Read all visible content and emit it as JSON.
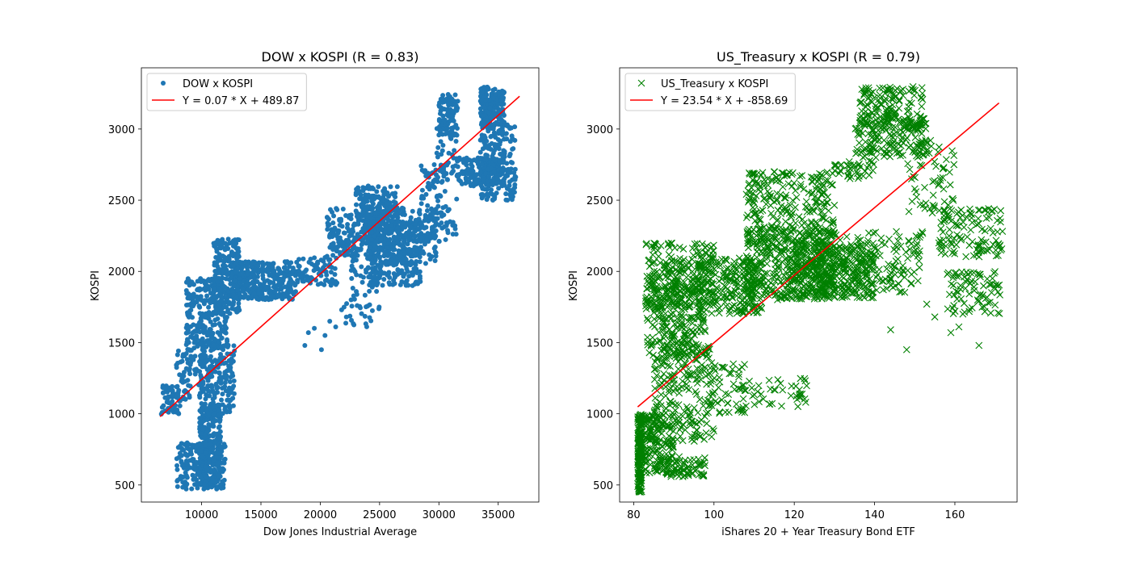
{
  "chart_data": [
    {
      "type": "scatter",
      "title": "DOW x KOSPI (R = 0.83)",
      "xlabel": "Dow Jones Industrial Average",
      "ylabel": "KOSPI",
      "xlim": [
        4922,
        38424
      ],
      "ylim": [
        380,
        3430
      ],
      "xticks": [
        10000,
        15000,
        20000,
        25000,
        30000,
        35000
      ],
      "yticks": [
        500,
        1000,
        1500,
        2000,
        2500,
        3000
      ],
      "legend_position": "upper-left",
      "series": [
        {
          "name": "DOW x KOSPI",
          "marker": "dot",
          "color": "#1f77b4",
          "clusters": [
            {
              "x": [
                6600,
                8200
              ],
              "y": [
                980,
                1200
              ],
              "n": 60
            },
            {
              "x": [
                7800,
                11000
              ],
              "y": [
                1100,
                1450
              ],
              "n": 80
            },
            {
              "x": [
                7900,
                12000
              ],
              "y": [
                470,
                800
              ],
              "n": 200
            },
            {
              "x": [
                9800,
                11600
              ],
              "y": [
                500,
                1050
              ],
              "n": 240
            },
            {
              "x": [
                9800,
                12800
              ],
              "y": [
                1000,
                1500
              ],
              "n": 200
            },
            {
              "x": [
                8700,
                12200
              ],
              "y": [
                1450,
                1950
              ],
              "n": 260
            },
            {
              "x": [
                11000,
                13200
              ],
              "y": [
                1700,
                2230
              ],
              "n": 220
            },
            {
              "x": [
                12500,
                18000
              ],
              "y": [
                1800,
                2070
              ],
              "n": 320
            },
            {
              "x": [
                18000,
                21500
              ],
              "y": [
                1900,
                2100
              ],
              "n": 80
            },
            {
              "x": [
                20500,
                24800
              ],
              "y": [
                2100,
                2450
              ],
              "n": 180
            },
            {
              "x": [
                23000,
                26500
              ],
              "y": [
                2250,
                2600
              ],
              "n": 200
            },
            {
              "x": [
                22000,
                25000
              ],
              "y": [
                1600,
                2100
              ],
              "n": 60
            },
            {
              "x": [
                24000,
                28500
              ],
              "y": [
                1900,
                2350
              ],
              "n": 300
            },
            {
              "x": [
                25000,
                29800
              ],
              "y": [
                2050,
                2450
              ],
              "n": 200
            },
            {
              "x": [
                28500,
                30800
              ],
              "y": [
                2200,
                2750
              ],
              "n": 80
            },
            {
              "x": [
                29800,
                31500
              ],
              "y": [
                2250,
                3100
              ],
              "n": 60
            },
            {
              "x": [
                30000,
                31600
              ],
              "y": [
                2950,
                3250
              ],
              "n": 100
            },
            {
              "x": [
                31500,
                35500
              ],
              "y": [
                2600,
                2800
              ],
              "n": 160
            },
            {
              "x": [
                33500,
                35500
              ],
              "y": [
                3000,
                3300
              ],
              "n": 200
            },
            {
              "x": [
                33500,
                36500
              ],
              "y": [
                2500,
                3050
              ],
              "n": 200
            }
          ],
          "outliers": [
            {
              "x": 18700,
              "y": 1480
            },
            {
              "x": 19000,
              "y": 1570
            },
            {
              "x": 20100,
              "y": 1450
            },
            {
              "x": 20400,
              "y": 1550
            },
            {
              "x": 20800,
              "y": 1650
            },
            {
              "x": 21300,
              "y": 1610
            },
            {
              "x": 21800,
              "y": 1730
            },
            {
              "x": 22200,
              "y": 1680
            },
            {
              "x": 22600,
              "y": 1800
            },
            {
              "x": 19500,
              "y": 1600
            }
          ]
        },
        {
          "name": "Y = 0.07 * X + 489.87",
          "type": "line",
          "color": "#ff0000",
          "x": [
            6500,
            36800
          ],
          "y": [
            980,
            3230
          ]
        }
      ]
    },
    {
      "type": "scatter",
      "title": "US_Treasury x KOSPI (R = 0.79)",
      "xlabel": "iShares 20 + Year Treasury Bond ETF",
      "ylabel": "KOSPI",
      "xlim": [
        76.5,
        175.5
      ],
      "ylim": [
        380,
        3430
      ],
      "xticks": [
        80,
        100,
        120,
        140,
        160
      ],
      "yticks": [
        500,
        1000,
        1500,
        2000,
        2500,
        3000
      ],
      "legend_position": "upper-left",
      "series": [
        {
          "name": "US_Treasury x KOSPI",
          "marker": "x",
          "color": "#008000",
          "clusters": [
            {
              "x": [
                81,
                82
              ],
              "y": [
                450,
                1000
              ],
              "n": 150
            },
            {
              "x": [
                81,
                90
              ],
              "y": [
                580,
                1000
              ],
              "n": 200
            },
            {
              "x": [
                88,
                98
              ],
              "y": [
                550,
                700
              ],
              "n": 60
            },
            {
              "x": [
                85,
                100
              ],
              "y": [
                800,
                1500
              ],
              "n": 200
            },
            {
              "x": [
                83,
                98
              ],
              "y": [
                1400,
                1950
              ],
              "n": 260
            },
            {
              "x": [
                83,
                100
              ],
              "y": [
                1750,
                2200
              ],
              "n": 220
            },
            {
              "x": [
                96,
                112
              ],
              "y": [
                1700,
                2100
              ],
              "n": 240
            },
            {
              "x": [
                98,
                108
              ],
              "y": [
                1000,
                1350
              ],
              "n": 60
            },
            {
              "x": [
                108,
                124
              ],
              "y": [
                1050,
                1250
              ],
              "n": 40
            },
            {
              "x": [
                108,
                130
              ],
              "y": [
                1800,
                2300
              ],
              "n": 360
            },
            {
              "x": [
                108,
                130
              ],
              "y": [
                2200,
                2700
              ],
              "n": 260
            },
            {
              "x": [
                118,
                140
              ],
              "y": [
                1800,
                2200
              ],
              "n": 320
            },
            {
              "x": [
                126,
                152
              ],
              "y": [
                1850,
                2280
              ],
              "n": 200
            },
            {
              "x": [
                130,
                140
              ],
              "y": [
                2650,
                2780
              ],
              "n": 40
            },
            {
              "x": [
                135,
                153
              ],
              "y": [
                2800,
                3100
              ],
              "n": 160
            },
            {
              "x": [
                136,
                152
              ],
              "y": [
                3000,
                3300
              ],
              "n": 160
            },
            {
              "x": [
                148,
                160
              ],
              "y": [
                2400,
                2950
              ],
              "n": 60
            },
            {
              "x": [
                156,
                172
              ],
              "y": [
                2100,
                2450
              ],
              "n": 120
            },
            {
              "x": [
                158,
                172
              ],
              "y": [
                1700,
                2000
              ],
              "n": 80
            }
          ],
          "outliers": [
            {
              "x": 144,
              "y": 1590
            },
            {
              "x": 148,
              "y": 1450
            },
            {
              "x": 153,
              "y": 1770
            },
            {
              "x": 155,
              "y": 1680
            },
            {
              "x": 159,
              "y": 1570
            },
            {
              "x": 161,
              "y": 1610
            },
            {
              "x": 166,
              "y": 1480
            },
            {
              "x": 162,
              "y": 1700
            }
          ]
        },
        {
          "name": "Y = 23.54 * X + -858.69",
          "type": "line",
          "color": "#ff0000",
          "x": [
            81,
            171
          ],
          "y": [
            1048,
            3183
          ]
        }
      ]
    }
  ]
}
